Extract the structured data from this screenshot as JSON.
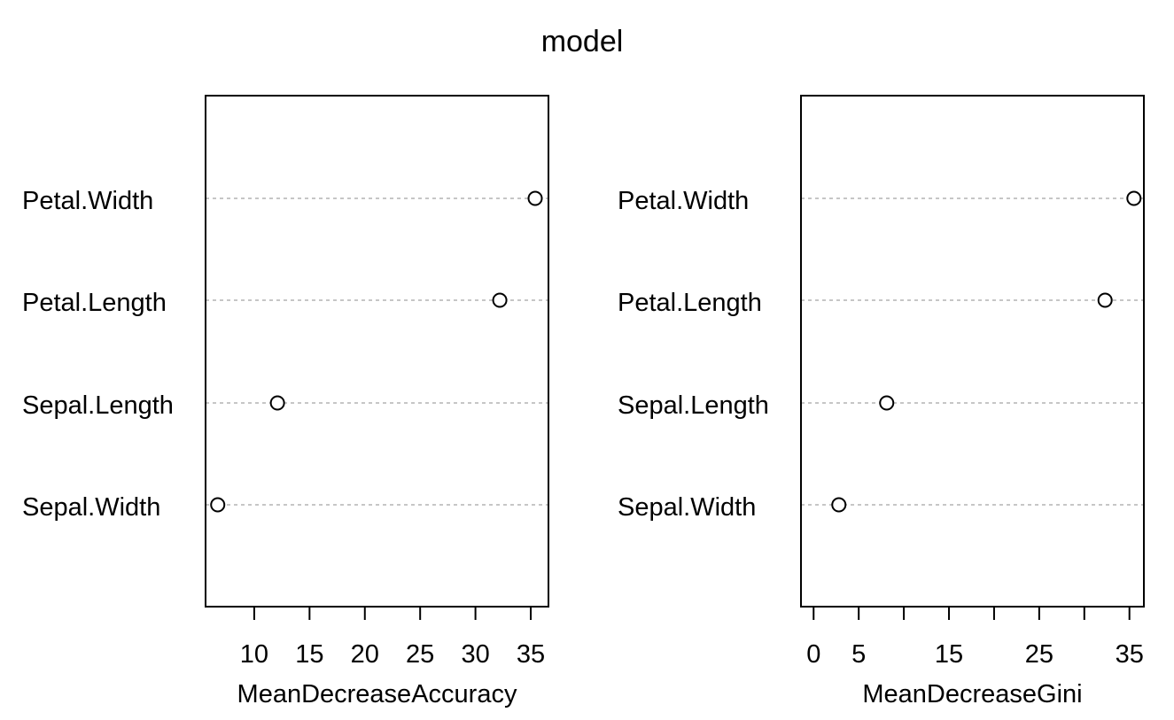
{
  "title": "model",
  "chart_data": [
    {
      "type": "scatter",
      "xlabel": "MeanDecreaseAccuracy",
      "ylabel": "",
      "categories": [
        "Petal.Width",
        "Petal.Length",
        "Sepal.Length",
        "Sepal.Width"
      ],
      "values": [
        35.4,
        32.2,
        12.1,
        6.7
      ],
      "xlim": [
        5.6,
        36.6
      ],
      "xticks": [
        10,
        15,
        20,
        25,
        30,
        35
      ],
      "xtick_labels": [
        "10",
        "15",
        "20",
        "25",
        "30",
        "35"
      ],
      "grid": "dotted horizontal lines per variable"
    },
    {
      "type": "scatter",
      "xlabel": "MeanDecreaseGini",
      "ylabel": "",
      "categories": [
        "Petal.Width",
        "Petal.Length",
        "Sepal.Length",
        "Sepal.Width"
      ],
      "values": [
        35.5,
        32.3,
        8.1,
        2.8
      ],
      "xlim": [
        -1.4,
        36.6
      ],
      "xticks": [
        0,
        5,
        10,
        15,
        20,
        25,
        30,
        35
      ],
      "xtick_labels": [
        "0",
        "5",
        "",
        "15",
        "",
        "25",
        "",
        "35"
      ],
      "grid": "dotted horizontal lines per variable"
    }
  ]
}
